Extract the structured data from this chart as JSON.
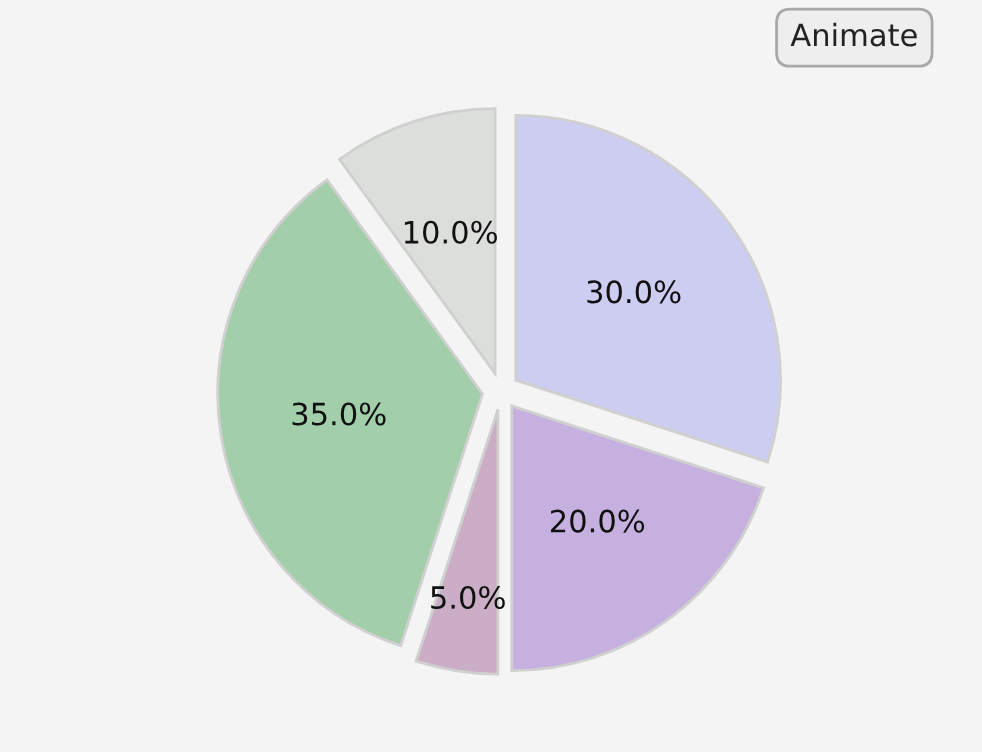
{
  "chart_data": {
    "type": "pie",
    "categories": [
      null,
      null,
      null,
      null,
      null
    ],
    "values": [
      30,
      20,
      5,
      35,
      10
    ],
    "colors": [
      "#cdcdf2",
      "#c6b0e0",
      "#cbaec6",
      "#a2cfaa",
      "#dcdedb"
    ],
    "value_labels": [
      "30.0%",
      "20.0%",
      "5.0%",
      "35.0%",
      "10.0%"
    ],
    "annotations": [
      "Animate"
    ]
  }
}
